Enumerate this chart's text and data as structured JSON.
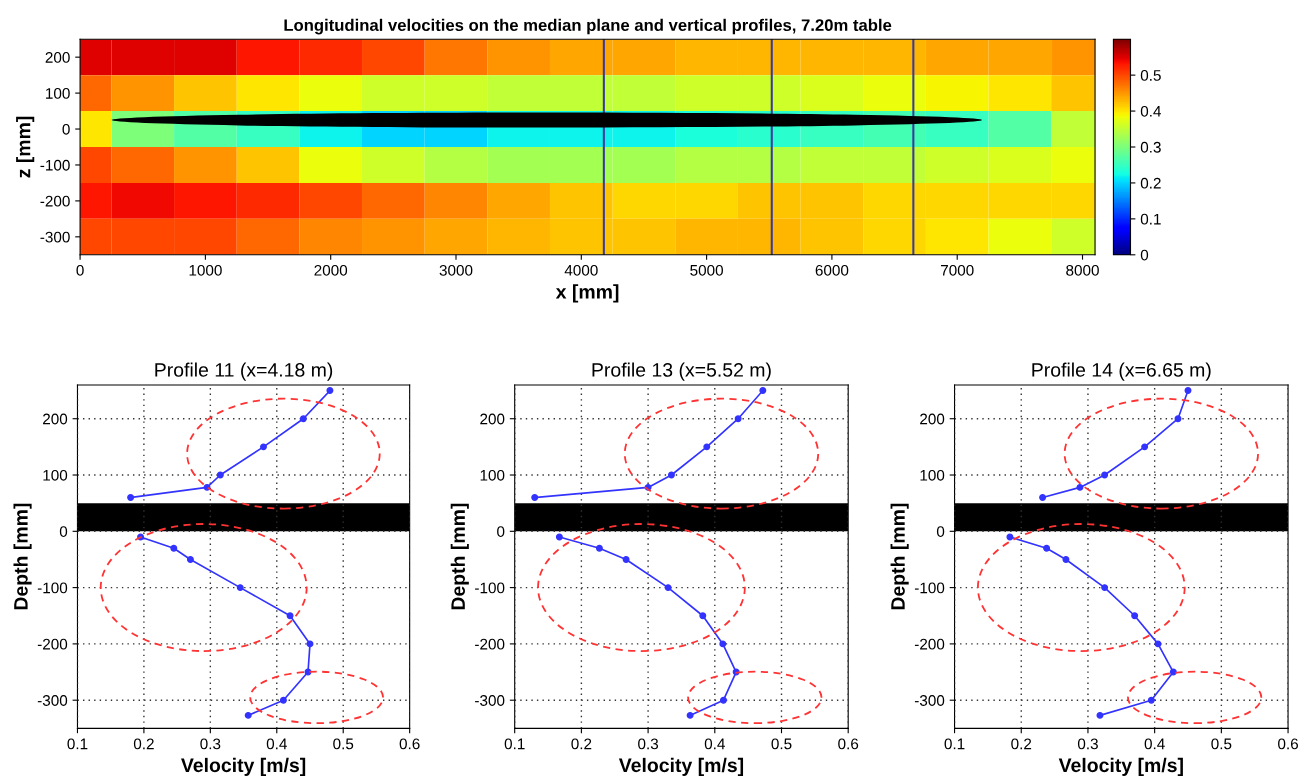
{
  "chart_data": [
    {
      "type": "heatmap",
      "title": "Longitudinal velocities on the median plane and vertical profiles, 7.20m table",
      "xlabel": "x [mm]",
      "ylabel": "z [mm]",
      "x": [
        0,
        500,
        1000,
        1500,
        2000,
        2500,
        3000,
        3500,
        4000,
        4500,
        5000,
        5500,
        6000,
        6500,
        7000,
        7500,
        8000
      ],
      "y_categories": [
        "200",
        "100",
        "0",
        "-100",
        "-200",
        "-300"
      ],
      "cells": [
        [
          0.55,
          0.55,
          0.55,
          0.53,
          0.52,
          0.5,
          0.47,
          0.45,
          0.44,
          0.44,
          0.43,
          0.43,
          0.43,
          0.43,
          0.44,
          0.44,
          0.45
        ],
        [
          0.48,
          0.45,
          0.42,
          0.4,
          0.38,
          0.36,
          0.36,
          0.35,
          0.35,
          0.35,
          0.36,
          0.36,
          0.37,
          0.38,
          0.39,
          0.4,
          0.42
        ],
        [
          0.4,
          0.3,
          0.27,
          0.25,
          0.22,
          0.2,
          0.2,
          0.22,
          0.22,
          0.22,
          0.23,
          0.24,
          0.25,
          0.26,
          0.25,
          0.27,
          0.35
        ],
        [
          0.5,
          0.48,
          0.45,
          0.42,
          0.38,
          0.36,
          0.34,
          0.33,
          0.33,
          0.33,
          0.34,
          0.34,
          0.35,
          0.35,
          0.36,
          0.37,
          0.38
        ],
        [
          0.53,
          0.54,
          0.53,
          0.52,
          0.5,
          0.48,
          0.46,
          0.44,
          0.42,
          0.41,
          0.41,
          0.42,
          0.42,
          0.41,
          0.41,
          0.41,
          0.41
        ],
        [
          0.5,
          0.5,
          0.5,
          0.48,
          0.46,
          0.45,
          0.44,
          0.43,
          0.42,
          0.42,
          0.43,
          0.43,
          0.42,
          0.41,
          0.4,
          0.38,
          0.36
        ]
      ],
      "clim": [
        0,
        0.6
      ],
      "cticks": [
        0,
        0.1,
        0.2,
        0.3,
        0.4,
        0.5
      ],
      "xlim": [
        0,
        8100
      ],
      "xticks": [
        0,
        1000,
        2000,
        3000,
        4000,
        5000,
        6000,
        7000,
        8000
      ],
      "ref_lines": [
        {
          "axis": "x",
          "value": 4180,
          "color": "#3a3aa0"
        },
        {
          "axis": "x",
          "value": 5520,
          "color": "#3a3aa0"
        },
        {
          "axis": "x",
          "value": 6650,
          "color": "#3a3aa0"
        }
      ]
    },
    {
      "type": "line",
      "title": "Profile 11 (x=4.18 m)",
      "xlabel": "Velocity [m/s]",
      "ylabel": "Depth [mm]",
      "xlim": [
        0.1,
        0.6
      ],
      "ylim": [
        -350,
        260
      ],
      "xticks": [
        0.1,
        0.2,
        0.3,
        0.4,
        0.5,
        0.6
      ],
      "yticks": [
        -300,
        -200,
        -100,
        0,
        100,
        200
      ],
      "grid": true,
      "marker": "circle",
      "line_style": "solid",
      "bands": [
        {
          "axis": "y",
          "from": 0,
          "to": 50,
          "color": "#000000"
        }
      ],
      "series": [
        {
          "color": "#3333ff",
          "x": [
            0.48,
            0.44,
            0.38,
            0.315,
            0.295,
            0.18
          ],
          "values": [
            250,
            200,
            150,
            100,
            78,
            60
          ]
        },
        {
          "color": "#3333ff",
          "x": [
            0.195,
            0.245,
            0.27,
            0.345,
            0.42,
            0.45,
            0.447,
            0.41,
            0.357
          ],
          "values": [
            -10,
            -30,
            -50,
            -100,
            -150,
            -200,
            -250,
            -300,
            -327
          ]
        }
      ]
    },
    {
      "type": "line",
      "title": "Profile 13 (x=5.52 m)",
      "xlabel": "Velocity [m/s]",
      "ylabel": "Depth [mm]",
      "xlim": [
        0.1,
        0.6
      ],
      "ylim": [
        -350,
        260
      ],
      "xticks": [
        0.1,
        0.2,
        0.3,
        0.4,
        0.5,
        0.6
      ],
      "yticks": [
        -300,
        -200,
        -100,
        0,
        100,
        200
      ],
      "grid": true,
      "marker": "circle",
      "line_style": "solid",
      "bands": [
        {
          "axis": "y",
          "from": 0,
          "to": 50,
          "color": "#000000"
        }
      ],
      "series": [
        {
          "color": "#3333ff",
          "x": [
            0.472,
            0.435,
            0.388,
            0.335,
            0.3,
            0.13
          ],
          "values": [
            250,
            200,
            150,
            100,
            78,
            60
          ]
        },
        {
          "color": "#3333ff",
          "x": [
            0.167,
            0.227,
            0.267,
            0.33,
            0.382,
            0.412,
            0.432,
            0.413,
            0.363
          ],
          "values": [
            -10,
            -30,
            -50,
            -100,
            -150,
            -200,
            -250,
            -300,
            -327
          ]
        }
      ]
    },
    {
      "type": "line",
      "title": "Profile 14 (x=6.65 m)",
      "xlabel": "Velocity [m/s]",
      "ylabel": "Depth [mm]",
      "xlim": [
        0.1,
        0.6
      ],
      "ylim": [
        -350,
        260
      ],
      "xticks": [
        0.1,
        0.2,
        0.3,
        0.4,
        0.5,
        0.6
      ],
      "yticks": [
        -300,
        -200,
        -100,
        0,
        100,
        200
      ],
      "grid": true,
      "marker": "circle",
      "line_style": "solid",
      "bands": [
        {
          "axis": "y",
          "from": 0,
          "to": 50,
          "color": "#000000"
        }
      ],
      "series": [
        {
          "color": "#3333ff",
          "x": [
            0.45,
            0.435,
            0.385,
            0.325,
            0.288,
            0.232
          ],
          "values": [
            250,
            200,
            150,
            100,
            78,
            60
          ]
        },
        {
          "color": "#3333ff",
          "x": [
            0.183,
            0.238,
            0.267,
            0.325,
            0.37,
            0.405,
            0.428,
            0.395,
            0.318
          ],
          "values": [
            -10,
            -30,
            -50,
            -100,
            -150,
            -200,
            -250,
            -300,
            -327
          ]
        }
      ]
    }
  ]
}
